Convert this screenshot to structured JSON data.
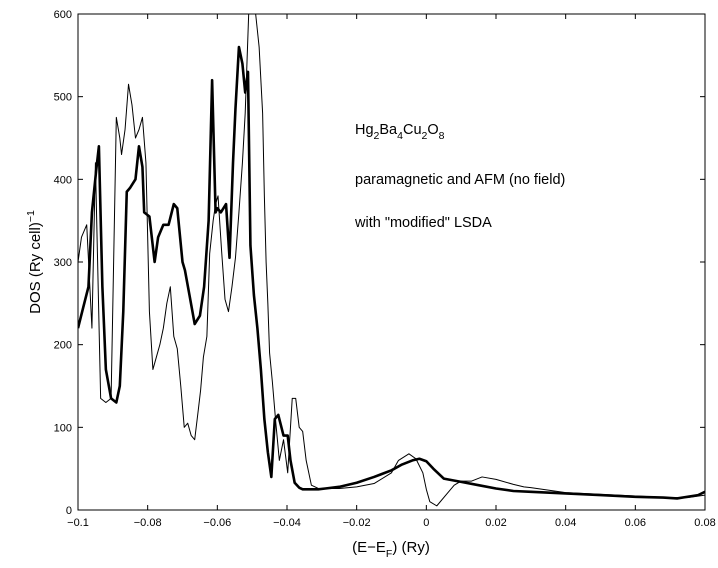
{
  "chart_data": {
    "type": "line",
    "xlabel": {
      "base": "(E−E",
      "sub": "F",
      "tail": ") (Ry)"
    },
    "ylabel": {
      "base": "DOS (Ry cell)",
      "sup": "−1"
    },
    "xlim": [
      -0.1,
      0.08
    ],
    "ylim": [
      0,
      600
    ],
    "xticks": [
      -0.1,
      -0.08,
      -0.06,
      -0.04,
      -0.02,
      0,
      0.02,
      0.04,
      0.06,
      0.08
    ],
    "xtick_labels": [
      "−0.1",
      "−0.08",
      "−0.06",
      "−0.04",
      "−0.02",
      "0",
      "0.02",
      "0.04",
      "0.06",
      "0.08"
    ],
    "yticks": [
      0,
      100,
      200,
      300,
      400,
      500,
      600
    ],
    "ytick_labels": [
      "0",
      "100",
      "200",
      "300",
      "400",
      "500",
      "600"
    ],
    "grid": false,
    "annotations": {
      "formula": [
        {
          "t": "Hg",
          "s": false
        },
        {
          "t": "2",
          "s": true
        },
        {
          "t": "Ba",
          "s": false
        },
        {
          "t": "4",
          "s": true
        },
        {
          "t": "Cu",
          "s": false
        },
        {
          "t": "2",
          "s": true
        },
        {
          "t": "O",
          "s": false
        },
        {
          "t": "8",
          "s": true
        }
      ],
      "line2": "paramagnetic and AFM (no field)",
      "line3": "with \"modified\" LSDA"
    },
    "series": [
      {
        "style": "thick",
        "color": "#000000",
        "x": [
          -0.1,
          -0.0985,
          -0.097,
          -0.096,
          -0.0948,
          -0.094,
          -0.093,
          -0.092,
          -0.0905,
          -0.089,
          -0.088,
          -0.087,
          -0.086,
          -0.085,
          -0.0835,
          -0.0825,
          -0.0815,
          -0.081,
          -0.0795,
          -0.078,
          -0.077,
          -0.0755,
          -0.074,
          -0.0725,
          -0.0715,
          -0.07,
          -0.0693,
          -0.068,
          -0.0665,
          -0.065,
          -0.0638,
          -0.0625,
          -0.0615,
          -0.0605,
          -0.06,
          -0.059,
          -0.0575,
          -0.0565,
          -0.0555,
          -0.0548,
          -0.0538,
          -0.0528,
          -0.052,
          -0.0512,
          -0.0505,
          -0.0495,
          -0.0485,
          -0.0475,
          -0.0465,
          -0.0455,
          -0.0445,
          -0.0435,
          -0.0425,
          -0.041,
          -0.0398,
          -0.039,
          -0.0378,
          -0.0365,
          -0.0355,
          -0.034,
          -0.0325,
          -0.031,
          -0.029,
          -0.025,
          -0.02,
          -0.015,
          -0.01,
          -0.007,
          -0.004,
          -0.002,
          0.0,
          0.002,
          0.005,
          0.01,
          0.015,
          0.02,
          0.025,
          0.03,
          0.04,
          0.05,
          0.06,
          0.068,
          0.072,
          0.075,
          0.078,
          0.08
        ],
        "y": [
          220,
          245,
          270,
          360,
          410,
          440,
          270,
          170,
          135,
          130,
          150,
          240,
          385,
          390,
          400,
          440,
          415,
          360,
          355,
          300,
          330,
          345,
          345,
          370,
          365,
          300,
          290,
          260,
          225,
          235,
          270,
          350,
          520,
          360,
          365,
          360,
          370,
          305,
          420,
          485,
          560,
          540,
          505,
          530,
          320,
          260,
          220,
          170,
          110,
          70,
          40,
          110,
          115,
          90,
          90,
          60,
          33,
          27,
          25,
          25,
          25,
          25,
          26,
          28,
          33,
          40,
          48,
          55,
          60,
          62,
          59,
          50,
          38,
          34,
          30,
          26,
          23,
          22,
          20,
          18,
          16,
          15,
          14,
          16,
          18,
          22
        ]
      },
      {
        "style": "thin",
        "color": "#000000",
        "x": [
          -0.1,
          -0.099,
          -0.0975,
          -0.096,
          -0.095,
          -0.0935,
          -0.092,
          -0.0905,
          -0.089,
          -0.088,
          -0.0875,
          -0.0865,
          -0.0855,
          -0.0845,
          -0.0835,
          -0.0825,
          -0.0815,
          -0.0805,
          -0.0795,
          -0.0785,
          -0.0775,
          -0.0765,
          -0.0755,
          -0.0745,
          -0.0735,
          -0.0725,
          -0.0715,
          -0.0705,
          -0.0695,
          -0.0685,
          -0.0675,
          -0.0665,
          -0.0655,
          -0.0648,
          -0.064,
          -0.063,
          -0.0622,
          -0.0612,
          -0.0605,
          -0.0598,
          -0.0588,
          -0.0578,
          -0.0568,
          -0.0558,
          -0.0548,
          -0.0538,
          -0.0528,
          -0.052,
          -0.051,
          -0.05,
          -0.049,
          -0.048,
          -0.047,
          -0.0465,
          -0.046,
          -0.0455,
          -0.045,
          -0.0442,
          -0.0432,
          -0.0422,
          -0.041,
          -0.0398,
          -0.0385,
          -0.0375,
          -0.0365,
          -0.0355,
          -0.0345,
          -0.033,
          -0.032,
          -0.031,
          -0.029,
          -0.025,
          -0.02,
          -0.015,
          -0.01,
          -0.008,
          -0.005,
          -0.003,
          -0.001,
          0.0,
          0.001,
          0.003,
          0.006,
          0.008,
          0.01,
          0.013,
          0.016,
          0.02,
          0.025,
          0.028,
          0.03,
          0.035,
          0.04,
          0.05,
          0.06,
          0.07,
          0.075,
          0.08
        ],
        "y": [
          300,
          330,
          345,
          220,
          420,
          135,
          130,
          135,
          475,
          450,
          430,
          460,
          515,
          490,
          450,
          460,
          475,
          420,
          240,
          170,
          185,
          200,
          220,
          250,
          270,
          210,
          195,
          150,
          100,
          105,
          90,
          85,
          120,
          145,
          185,
          210,
          310,
          350,
          370,
          380,
          315,
          255,
          240,
          270,
          305,
          360,
          420,
          480,
          600,
          600,
          600,
          560,
          480,
          380,
          300,
          250,
          190,
          155,
          105,
          60,
          85,
          45,
          135,
          135,
          100,
          95,
          60,
          30,
          28,
          26,
          26,
          26,
          28,
          32,
          45,
          60,
          68,
          62,
          45,
          25,
          10,
          5,
          20,
          30,
          35,
          35,
          40,
          37,
          31,
          28,
          27,
          24,
          21,
          19,
          17,
          15,
          15,
          18
        ]
      }
    ]
  }
}
